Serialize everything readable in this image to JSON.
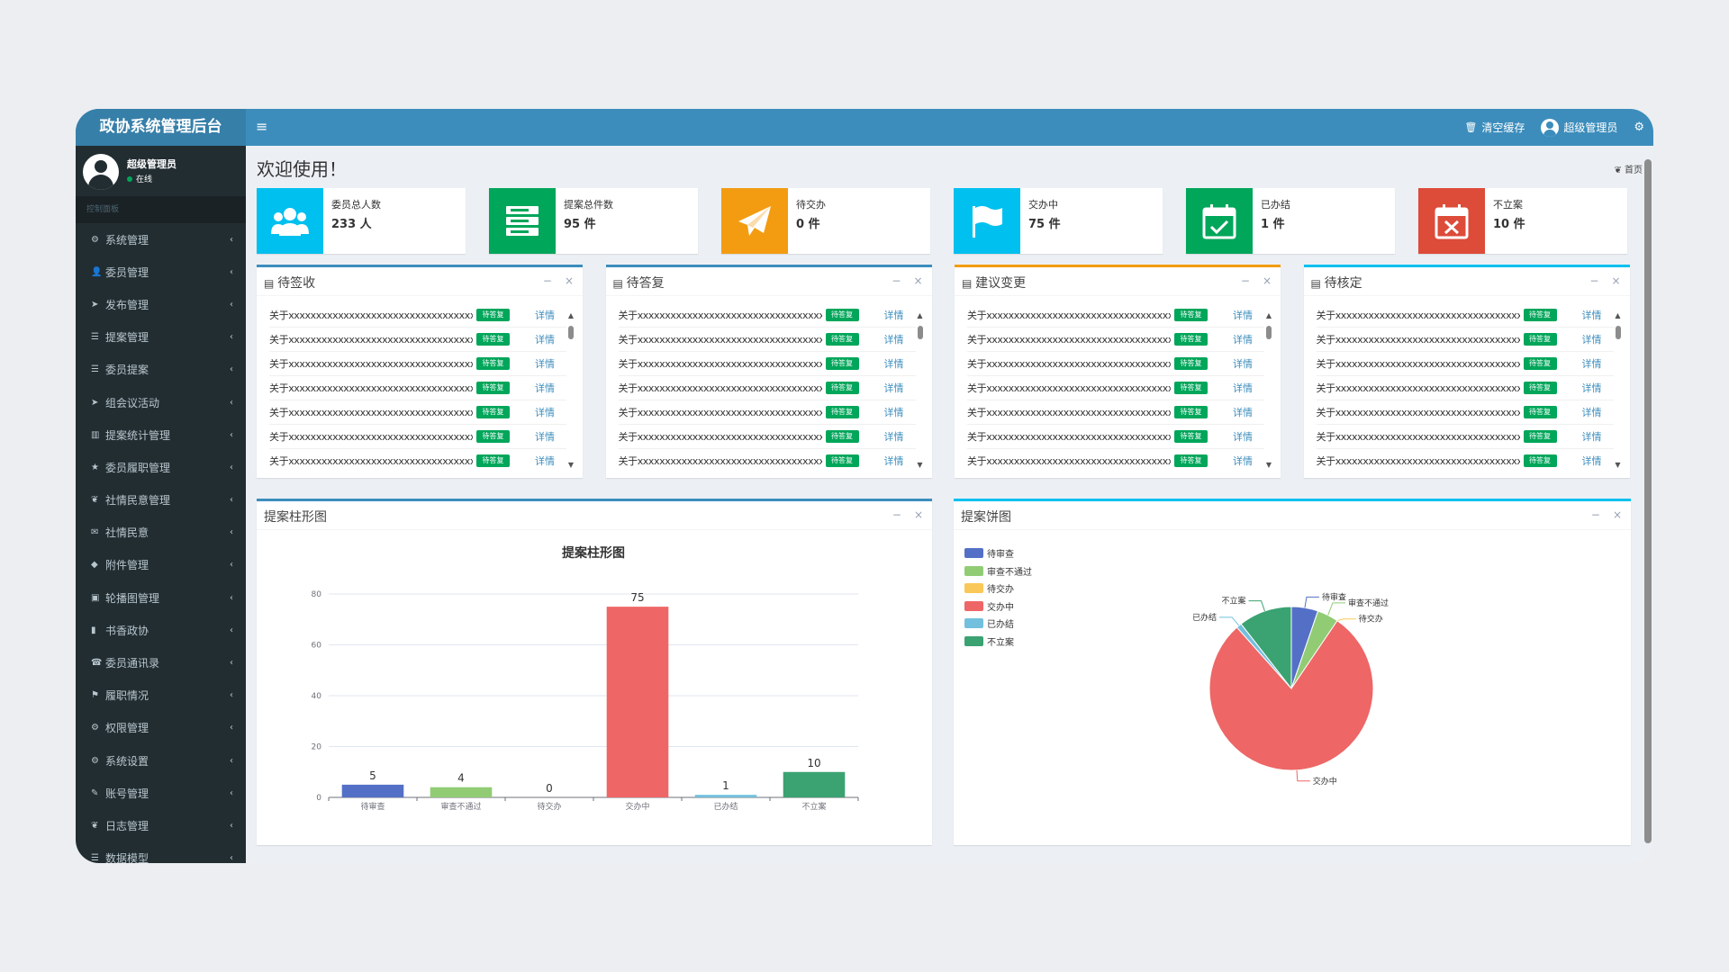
{
  "header": {
    "logo": "政协系统管理后台",
    "menu_toggle": "≡",
    "clear_cache": "清空缓存",
    "admin": "超级管理员"
  },
  "sidebar": {
    "user_name": "超级管理员",
    "user_status": "在线",
    "section": "控制面板",
    "items": [
      {
        "label": "系统管理",
        "icon": "gear-icon",
        "glyph": "⚙"
      },
      {
        "label": "委员管理",
        "icon": "user-icon",
        "glyph": "👤"
      },
      {
        "label": "发布管理",
        "icon": "paper-plane-icon",
        "glyph": "➤"
      },
      {
        "label": "提案管理",
        "icon": "list-icon",
        "glyph": "☰"
      },
      {
        "label": "委员提案",
        "icon": "list-icon",
        "glyph": "☰"
      },
      {
        "label": "组会议活动",
        "icon": "paper-plane-icon",
        "glyph": "➤"
      },
      {
        "label": "提案统计管理",
        "icon": "bar-chart-icon",
        "glyph": "▥"
      },
      {
        "label": "委员履职管理",
        "icon": "star-icon",
        "glyph": "★"
      },
      {
        "label": "社情民意管理",
        "icon": "leaf-icon",
        "glyph": "❦"
      },
      {
        "label": "社情民意",
        "icon": "envelope-icon",
        "glyph": "✉"
      },
      {
        "label": "附件管理",
        "icon": "tag-icon",
        "glyph": "◆"
      },
      {
        "label": "轮播图管理",
        "icon": "image-icon",
        "glyph": "▣"
      },
      {
        "label": "书香政协",
        "icon": "book-icon",
        "glyph": "▮"
      },
      {
        "label": "委员通讯录",
        "icon": "phone-icon",
        "glyph": "☎"
      },
      {
        "label": "履职情况",
        "icon": "flag-icon",
        "glyph": "⚑"
      },
      {
        "label": "权限管理",
        "icon": "cogs-icon",
        "glyph": "⚙"
      },
      {
        "label": "系统设置",
        "icon": "cogs-icon",
        "glyph": "⚙"
      },
      {
        "label": "账号管理",
        "icon": "wrench-icon",
        "glyph": "✎"
      },
      {
        "label": "日志管理",
        "icon": "leaf-icon",
        "glyph": "❦"
      },
      {
        "label": "数据模型",
        "icon": "list-icon",
        "glyph": "☰"
      }
    ]
  },
  "content": {
    "title": "欢迎使用！",
    "breadcrumb": "首页"
  },
  "stats": [
    {
      "label": "委员总人数",
      "value": "233 人",
      "color": "#00c0ef",
      "icon": "users-icon"
    },
    {
      "label": "提案总件数",
      "value": "95 件",
      "color": "#00a65a",
      "icon": "server-icon"
    },
    {
      "label": "待交办",
      "value": "0 件",
      "color": "#f39c12",
      "icon": "paper-plane-icon"
    },
    {
      "label": "交办中",
      "value": "75 件",
      "color": "#00c0ef",
      "icon": "flag-icon"
    },
    {
      "label": "已办结",
      "value": "1 件",
      "color": "#00a65a",
      "icon": "calendar-check-icon"
    },
    {
      "label": "不立案",
      "value": "10 件",
      "color": "#dd4b39",
      "icon": "calendar-times-icon"
    }
  ],
  "list_panels": [
    {
      "title": "待签收",
      "accent": "blue"
    },
    {
      "title": "待答复",
      "accent": "blue"
    },
    {
      "title": "建议变更",
      "accent": "yellow"
    },
    {
      "title": "待核定",
      "accent": "cyan"
    }
  ],
  "list_rows": [
    {
      "text": "关于xxxxxxxxxxxxxxxxxxxxxxxxxxxxxxxxxxx提案",
      "badge": "待答复",
      "link": "详情"
    },
    {
      "text": "关于xxxxxxxxxxxxxxxxxxxxxxxxxxxxxxxxxxx提案",
      "badge": "待答复",
      "link": "详情"
    },
    {
      "text": "关于xxxxxxxxxxxxxxxxxxxxxxxxxxxxxxxxxxx提案",
      "badge": "待答复",
      "link": "详情"
    },
    {
      "text": "关于xxxxxxxxxxxxxxxxxxxxxxxxxxxxxxxxxxx提案",
      "badge": "待答复",
      "link": "详情"
    },
    {
      "text": "关于xxxxxxxxxxxxxxxxxxxxxxxxxxxxxxxxxxx提案",
      "badge": "待答复",
      "link": "详情"
    },
    {
      "text": "关于xxxxxxxxxxxxxxxxxxxxxxxxxxxxxxxxxxx提案",
      "badge": "待答复",
      "link": "详情"
    },
    {
      "text": "关于xxxxxxxxxxxxxxxxxxxxxxxxxxxxxxxxxxx提案",
      "badge": "待答复",
      "link": "详情"
    }
  ],
  "panel_tools": {
    "minimize": "−",
    "close": "×"
  },
  "bar_panel": {
    "title": "提案柱形图"
  },
  "pie_panel": {
    "title": "提案饼图"
  },
  "chart_data": [
    {
      "type": "bar",
      "title": "提案柱形图",
      "categories": [
        "待审查",
        "审查不通过",
        "待交办",
        "交办中",
        "已办结",
        "不立案"
      ],
      "values": [
        5,
        4,
        0,
        75,
        1,
        10
      ],
      "colors": [
        "#5470c6",
        "#91cc75",
        "#fac858",
        "#ee6666",
        "#73c0de",
        "#3ba272"
      ],
      "ylim": [
        0,
        80
      ],
      "yticks": [
        0,
        20,
        40,
        60,
        80
      ],
      "grid": true
    },
    {
      "type": "pie",
      "categories": [
        "待审查",
        "审查不通过",
        "待交办",
        "交办中",
        "已办结",
        "不立案"
      ],
      "values": [
        5,
        4,
        0,
        75,
        1,
        10
      ],
      "colors": [
        "#5470c6",
        "#91cc75",
        "#fac858",
        "#ee6666",
        "#73c0de",
        "#3ba272"
      ],
      "legend": "top-left"
    }
  ]
}
